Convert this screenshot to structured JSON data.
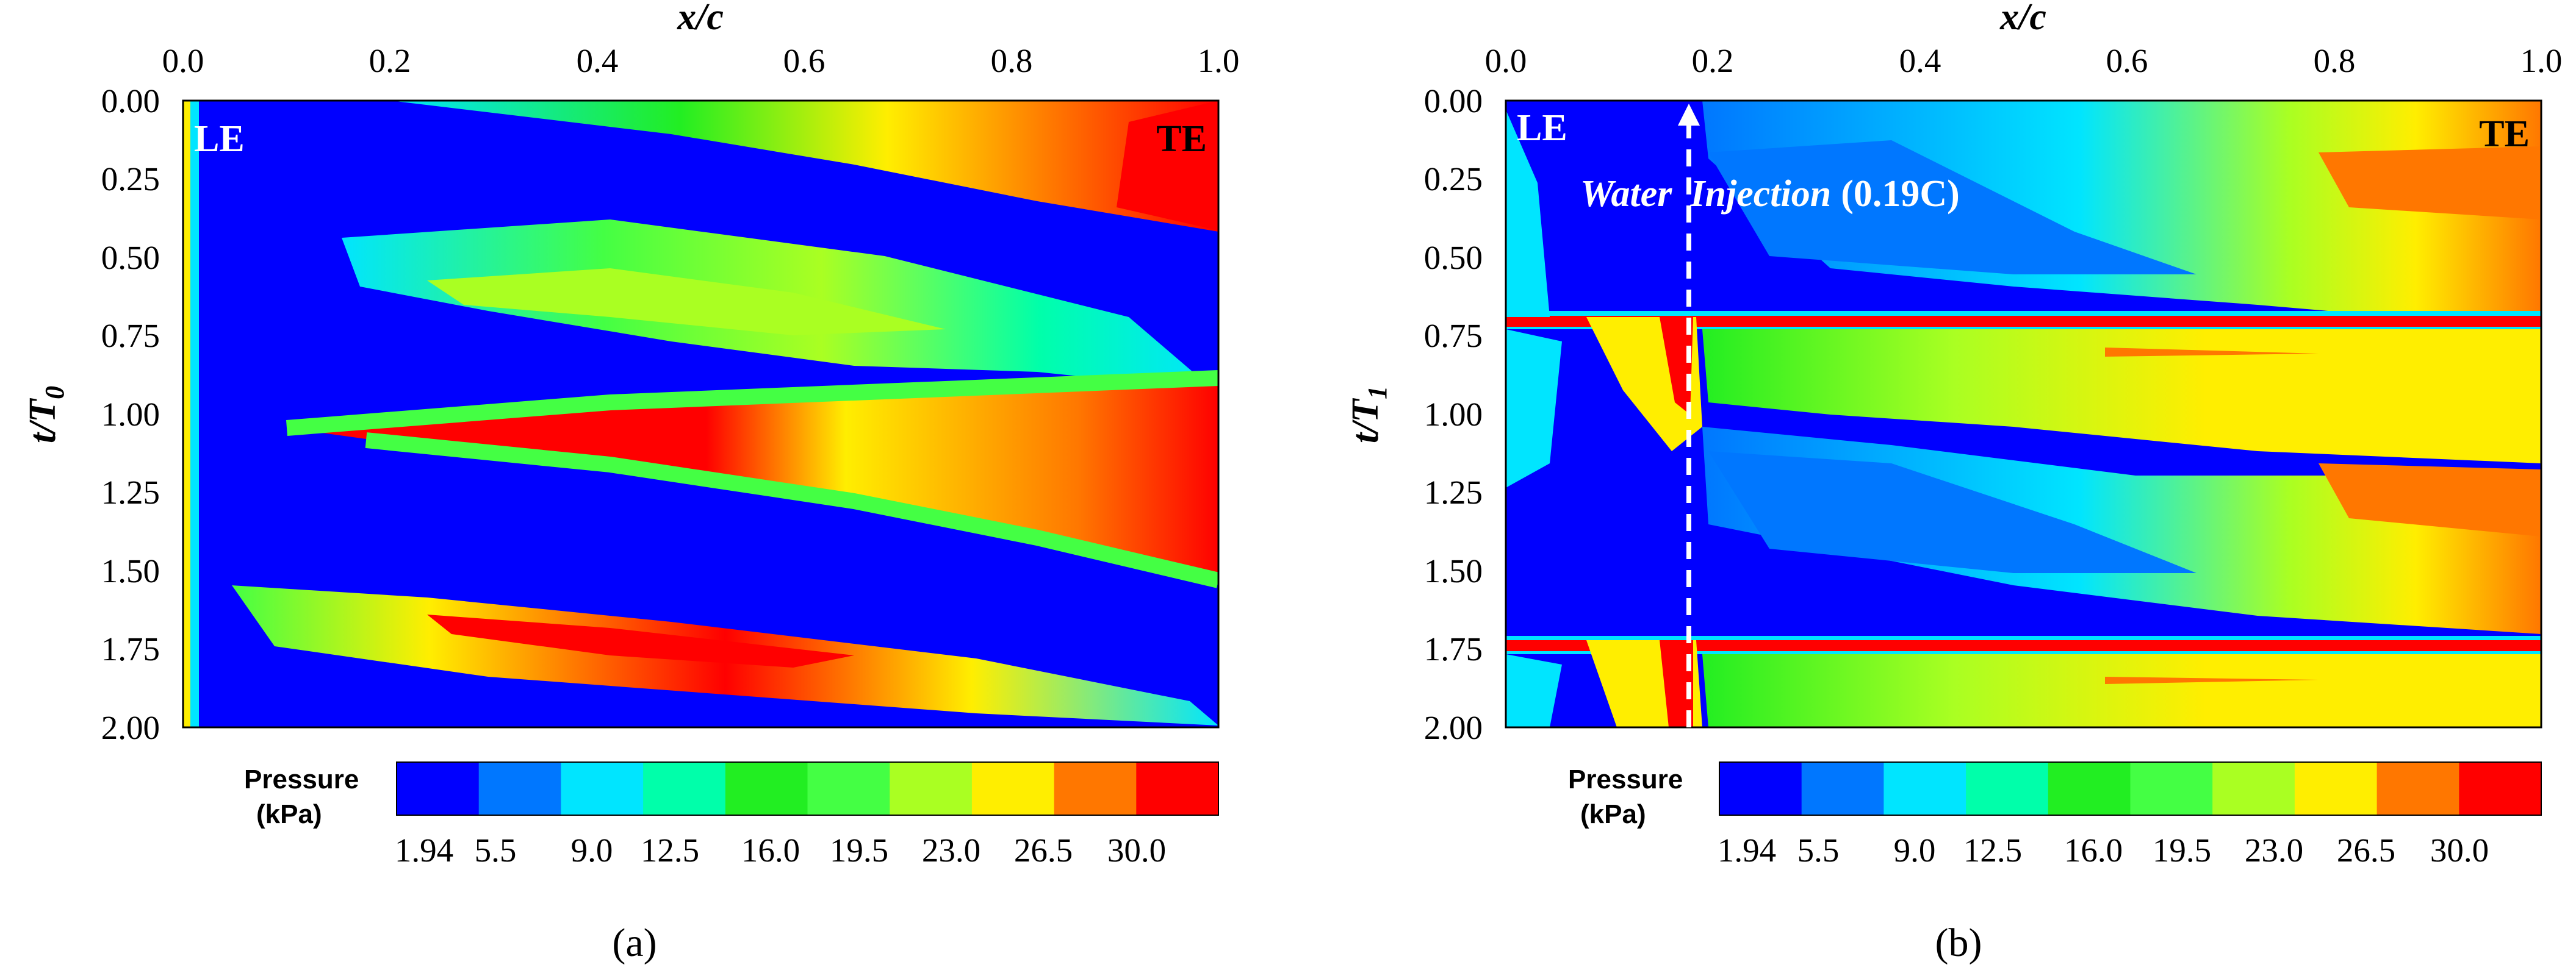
{
  "chart_data": [
    {
      "type": "heatmap",
      "panel_label": "a",
      "xlabel": "x/c",
      "ylabel": {
        "base": "t/T",
        "sub": "0"
      },
      "x_ticks": [
        "0.0",
        "0.2",
        "0.4",
        "0.6",
        "0.8",
        "1.0"
      ],
      "y_ticks": [
        "0.00",
        "0.25",
        "0.50",
        "0.75",
        "1.00",
        "1.25",
        "1.50",
        "1.75",
        "2.00"
      ],
      "xlim": [
        0,
        1
      ],
      "ylim": [
        0,
        2
      ],
      "annotations": {
        "left": "LE",
        "right": "TE"
      },
      "colorbar": {
        "title_line1": "Pressure",
        "title_line2": "(kPa)",
        "ticks": [
          "1.94",
          "5.5",
          "9.0",
          "12.5",
          "16.0",
          "19.5",
          "23.0",
          "26.5",
          "30.0"
        ]
      },
      "bands": [
        {
          "t0": 0.0,
          "t1": 0.42,
          "x_start": 0.2,
          "x_end": 1.0,
          "level": 8
        },
        {
          "t0": 0.46,
          "t1": 0.93,
          "x_start": 0.15,
          "x_end": 0.95,
          "level": 5
        },
        {
          "t0": 0.95,
          "t1": 1.45,
          "x_start": 0.12,
          "x_end": 1.0,
          "level": 9
        },
        {
          "t0": 1.55,
          "t1": 1.95,
          "x_start": 0.08,
          "x_end": 0.95,
          "level": 9
        }
      ]
    },
    {
      "type": "heatmap",
      "panel_label": "b",
      "xlabel": "x/c",
      "ylabel": {
        "base": "t/T",
        "sub": "1"
      },
      "x_ticks": [
        "0.0",
        "0.2",
        "0.4",
        "0.6",
        "0.8",
        "1.0"
      ],
      "y_ticks": [
        "0.00",
        "0.25",
        "0.50",
        "0.75",
        "1.00",
        "1.25",
        "1.50",
        "1.75",
        "2.00"
      ],
      "xlim": [
        0,
        1
      ],
      "ylim": [
        0,
        2
      ],
      "annotations": {
        "left": "LE",
        "right": "TE",
        "injection_label": "Water",
        "injection_word2": "Injection",
        "injection_pos": "(0.19C)"
      },
      "injection_x": 0.19,
      "colorbar": {
        "title_line1": "Pressure",
        "title_line2": "(kPa)",
        "ticks": [
          "1.94",
          "5.5",
          "9.0",
          "12.5",
          "16.0",
          "19.5",
          "23.0",
          "26.5",
          "30.0"
        ]
      },
      "shock_times": [
        0.72,
        1.72
      ]
    }
  ],
  "captions": [
    "(a)",
    "(b)"
  ],
  "colors": [
    "#0000ff",
    "#0077ff",
    "#00e5ff",
    "#00ffaa",
    "#22ee22",
    "#44ff44",
    "#aaff22",
    "#ffee00",
    "#ff7700",
    "#ff0000"
  ]
}
